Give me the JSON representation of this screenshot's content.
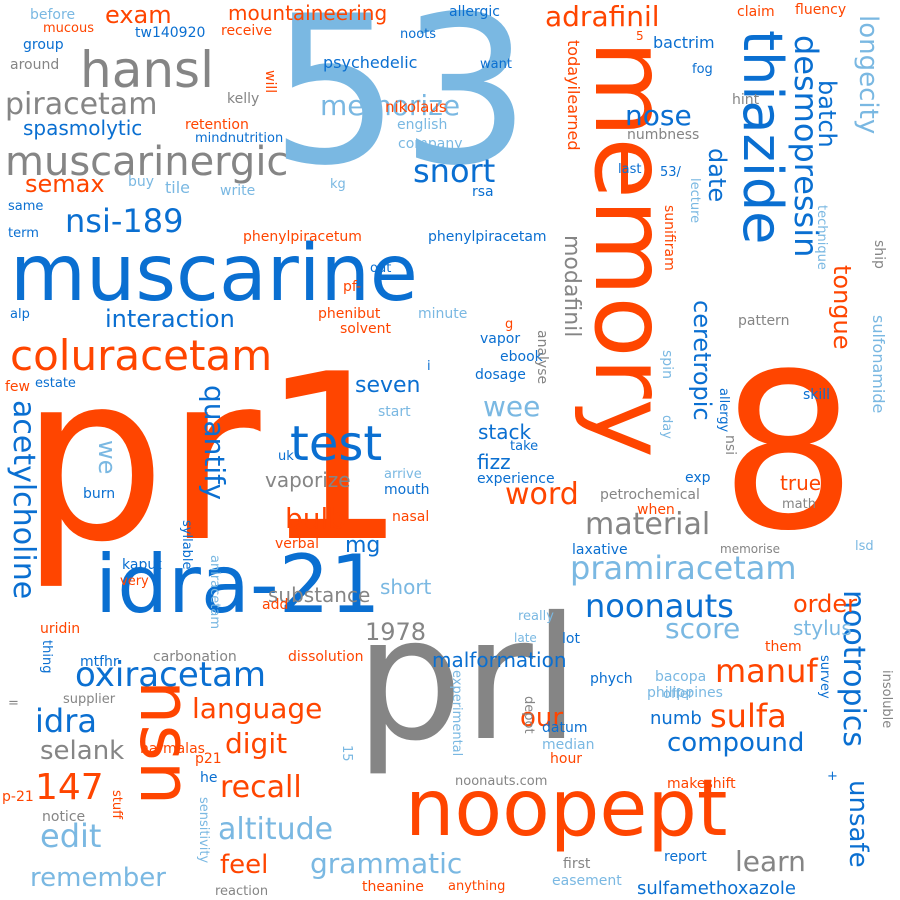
{
  "palette": {
    "orange": "#ff4500",
    "blue": "#0a6fd1",
    "gray": "#858585",
    "light": "#7ab8e2"
  },
  "words": [
    {
      "t": "pr1",
      "c": "orange",
      "vertical": false
    },
    {
      "t": "53",
      "c": "light",
      "vertical": false
    },
    {
      "t": "8",
      "c": "orange",
      "vertical": false
    },
    {
      "t": "prl",
      "c": "gray",
      "vertical": false
    },
    {
      "t": "memory",
      "c": "orange",
      "vertical": true
    },
    {
      "t": "muscarine",
      "c": "blue",
      "vertical": false
    },
    {
      "t": "idra-21",
      "c": "blue",
      "vertical": false
    },
    {
      "t": "noopept",
      "c": "orange",
      "vertical": false
    },
    {
      "t": "nsn",
      "c": "orange",
      "vertical": true
    },
    {
      "t": "thiazide",
      "c": "blue",
      "vertical": true
    },
    {
      "t": "coluracetam",
      "c": "orange",
      "vertical": false
    },
    {
      "t": "hansl",
      "c": "gray",
      "vertical": false
    },
    {
      "t": "muscarinergic",
      "c": "gray",
      "vertical": false
    },
    {
      "t": "test",
      "c": "blue",
      "vertical": false
    },
    {
      "t": "desmopressin",
      "c": "blue",
      "vertical": true
    },
    {
      "t": "piracetam",
      "c": "gray",
      "vertical": false
    },
    {
      "t": "acetylcholine",
      "c": "blue",
      "vertical": true
    },
    {
      "t": "oxiracetam",
      "c": "blue",
      "vertical": false
    },
    {
      "t": "nootropics",
      "c": "blue",
      "vertical": true
    },
    {
      "t": "pramiracetam",
      "c": "light",
      "vertical": false
    },
    {
      "t": "noonauts",
      "c": "blue",
      "vertical": false
    },
    {
      "t": "memorize",
      "c": "light",
      "vertical": false
    },
    {
      "t": "nsi-189",
      "c": "blue",
      "vertical": false
    },
    {
      "t": "compound",
      "c": "blue",
      "vertical": false
    },
    {
      "t": "altitude",
      "c": "light",
      "vertical": false
    },
    {
      "t": "grammatic",
      "c": "light",
      "vertical": false
    },
    {
      "t": "material",
      "c": "gray",
      "vertical": false
    },
    {
      "t": "manuf",
      "c": "orange",
      "vertical": false
    },
    {
      "t": "sulfa",
      "c": "orange",
      "vertical": false
    },
    {
      "t": "language",
      "c": "orange",
      "vertical": false
    },
    {
      "t": "147",
      "c": "orange",
      "vertical": false
    },
    {
      "t": "edit",
      "c": "light",
      "vertical": false
    },
    {
      "t": "idra",
      "c": "blue",
      "vertical": false
    },
    {
      "t": "recall",
      "c": "orange",
      "vertical": false
    },
    {
      "t": "digit",
      "c": "orange",
      "vertical": false
    },
    {
      "t": "score",
      "c": "light",
      "vertical": false
    },
    {
      "t": "word",
      "c": "orange",
      "vertical": false
    },
    {
      "t": "quantify",
      "c": "blue",
      "vertical": true
    },
    {
      "t": "interaction",
      "c": "blue",
      "vertical": false
    },
    {
      "t": "snort",
      "c": "blue",
      "vertical": false
    },
    {
      "t": "nose",
      "c": "blue",
      "vertical": false
    },
    {
      "t": "adrafinil",
      "c": "orange",
      "vertical": false
    },
    {
      "t": "longecity",
      "c": "light",
      "vertical": true
    },
    {
      "t": "tongue",
      "c": "orange",
      "vertical": true
    },
    {
      "t": "batch",
      "c": "blue",
      "vertical": true
    },
    {
      "t": "date",
      "c": "blue",
      "vertical": true
    },
    {
      "t": "exam",
      "c": "orange",
      "vertical": false
    },
    {
      "t": "semax",
      "c": "orange",
      "vertical": false
    },
    {
      "t": "modafinil",
      "c": "gray",
      "vertical": true
    },
    {
      "t": "ceretropic",
      "c": "blue",
      "vertical": true
    },
    {
      "t": "remember",
      "c": "light",
      "vertical": false
    },
    {
      "t": "feel",
      "c": "orange",
      "vertical": false
    },
    {
      "t": "learn",
      "c": "gray",
      "vertical": false
    },
    {
      "t": "unsafe",
      "c": "blue",
      "vertical": true
    },
    {
      "t": "our",
      "c": "orange",
      "vertical": false
    },
    {
      "t": "selank",
      "c": "gray",
      "vertical": false
    },
    {
      "t": "1978",
      "c": "gray",
      "vertical": false
    },
    {
      "t": "bulb",
      "c": "orange",
      "vertical": false
    },
    {
      "t": "wee",
      "c": "light",
      "vertical": false
    },
    {
      "t": "seven",
      "c": "blue",
      "vertical": false
    },
    {
      "t": "spasmolytic",
      "c": "blue",
      "vertical": false
    },
    {
      "t": "mountaineering",
      "c": "orange",
      "vertical": false
    },
    {
      "t": "order",
      "c": "orange",
      "vertical": false
    },
    {
      "t": "we",
      "c": "light",
      "vertical": true
    },
    {
      "t": "mg",
      "c": "blue",
      "vertical": false
    },
    {
      "t": "true",
      "c": "orange",
      "vertical": false
    },
    {
      "t": "stylus",
      "c": "light",
      "vertical": false
    },
    {
      "t": "numb",
      "c": "blue",
      "vertical": false
    },
    {
      "t": "substance",
      "c": "gray",
      "vertical": false
    },
    {
      "t": "short",
      "c": "light",
      "vertical": false
    },
    {
      "t": "vaporize",
      "c": "gray",
      "vertical": false
    },
    {
      "t": "malformation",
      "c": "blue",
      "vertical": false
    },
    {
      "t": "fizz",
      "c": "blue",
      "vertical": false
    },
    {
      "t": "stack",
      "c": "blue",
      "vertical": false
    },
    {
      "t": "sulfamethoxazole",
      "c": "blue",
      "vertical": false
    },
    {
      "t": "bactrim",
      "c": "blue",
      "vertical": false
    },
    {
      "t": "sulfonamide",
      "c": "light",
      "vertical": true
    },
    {
      "t": "todayilearned",
      "c": "orange",
      "vertical": true
    },
    {
      "t": "nikolaus",
      "c": "orange",
      "vertical": false
    },
    {
      "t": "psychedelic",
      "c": "blue",
      "vertical": false
    },
    {
      "t": "english",
      "c": "light",
      "vertical": false
    },
    {
      "t": "company",
      "c": "light",
      "vertical": false
    },
    {
      "t": "phenylpiracetum",
      "c": "orange",
      "vertical": false
    },
    {
      "t": "phenylpiracetam",
      "c": "blue",
      "vertical": false
    },
    {
      "t": "retention",
      "c": "orange",
      "vertical": false
    },
    {
      "t": "mindnutrition",
      "c": "blue",
      "vertical": false
    },
    {
      "t": "tw140920",
      "c": "blue",
      "vertical": false
    },
    {
      "t": "kelly",
      "c": "gray",
      "vertical": false
    },
    {
      "t": "tile",
      "c": "light",
      "vertical": false
    },
    {
      "t": "buy",
      "c": "light",
      "vertical": false
    },
    {
      "t": "write",
      "c": "light",
      "vertical": false
    },
    {
      "t": "kg",
      "c": "light",
      "vertical": false
    },
    {
      "t": "rsa",
      "c": "blue",
      "vertical": false
    },
    {
      "t": "before",
      "c": "light",
      "vertical": false
    },
    {
      "t": "mucous",
      "c": "orange",
      "vertical": false
    },
    {
      "t": "group",
      "c": "blue",
      "vertical": false
    },
    {
      "t": "around",
      "c": "gray",
      "vertical": false
    },
    {
      "t": "allergic",
      "c": "blue",
      "vertical": false
    },
    {
      "t": "receive",
      "c": "orange",
      "vertical": false
    },
    {
      "t": "noots",
      "c": "blue",
      "vertical": false
    },
    {
      "t": "want",
      "c": "blue",
      "vertical": false
    },
    {
      "t": "claim",
      "c": "orange",
      "vertical": false
    },
    {
      "t": "fluency",
      "c": "orange",
      "vertical": false
    },
    {
      "t": "fog",
      "c": "blue",
      "vertical": false
    },
    {
      "t": "hint",
      "c": "gray",
      "vertical": false
    },
    {
      "t": "numbness",
      "c": "gray",
      "vertical": false
    },
    {
      "t": "last",
      "c": "blue",
      "vertical": false
    },
    {
      "t": "53/",
      "c": "blue",
      "vertical": false
    },
    {
      "t": "lecture",
      "c": "light",
      "vertical": true
    },
    {
      "t": "sunifiram",
      "c": "orange",
      "vertical": true
    },
    {
      "t": "technique",
      "c": "light",
      "vertical": true
    },
    {
      "t": "ship",
      "c": "gray",
      "vertical": true
    },
    {
      "t": "pattern",
      "c": "gray",
      "vertical": false
    },
    {
      "t": "same",
      "c": "blue",
      "vertical": false
    },
    {
      "t": "term",
      "c": "blue",
      "vertical": false
    },
    {
      "t": "out",
      "c": "blue",
      "vertical": false
    },
    {
      "t": "pf-",
      "c": "orange",
      "vertical": false
    },
    {
      "t": "alp",
      "c": "blue",
      "vertical": false
    },
    {
      "t": "phenibut",
      "c": "orange",
      "vertical": false
    },
    {
      "t": "minute",
      "c": "light",
      "vertical": false
    },
    {
      "t": "solvent",
      "c": "orange",
      "vertical": false
    },
    {
      "t": "vapor",
      "c": "blue",
      "vertical": false
    },
    {
      "t": "ebook",
      "c": "blue",
      "vertical": false
    },
    {
      "t": "dosage",
      "c": "blue",
      "vertical": false
    },
    {
      "t": "analyse",
      "c": "gray",
      "vertical": true
    },
    {
      "t": "spin",
      "c": "light",
      "vertical": true
    },
    {
      "t": "day",
      "c": "light",
      "vertical": true
    },
    {
      "t": "allergy",
      "c": "blue",
      "vertical": true
    },
    {
      "t": "skill",
      "c": "blue",
      "vertical": false
    },
    {
      "t": "few",
      "c": "orange",
      "vertical": false
    },
    {
      "t": "estate",
      "c": "blue",
      "vertical": false
    },
    {
      "t": "start",
      "c": "light",
      "vertical": false
    },
    {
      "t": "uk",
      "c": "blue",
      "vertical": false
    },
    {
      "t": "take",
      "c": "blue",
      "vertical": false
    },
    {
      "t": "nsi",
      "c": "gray",
      "vertical": true
    },
    {
      "t": "experience",
      "c": "blue",
      "vertical": false
    },
    {
      "t": "exp",
      "c": "blue",
      "vertical": false
    },
    {
      "t": "mouth",
      "c": "blue",
      "vertical": false
    },
    {
      "t": "arrive",
      "c": "light",
      "vertical": false
    },
    {
      "t": "burn",
      "c": "blue",
      "vertical": false
    },
    {
      "t": "petrochemical",
      "c": "gray",
      "vertical": false
    },
    {
      "t": "when",
      "c": "orange",
      "vertical": false
    },
    {
      "t": "math",
      "c": "gray",
      "vertical": false
    },
    {
      "t": "nasal",
      "c": "orange",
      "vertical": false
    },
    {
      "t": "verbal",
      "c": "orange",
      "vertical": false
    },
    {
      "t": "syllable",
      "c": "blue",
      "vertical": true
    },
    {
      "t": "laxative",
      "c": "blue",
      "vertical": false
    },
    {
      "t": "memorise",
      "c": "gray",
      "vertical": false
    },
    {
      "t": "lsd",
      "c": "light",
      "vertical": false
    },
    {
      "t": "kaput",
      "c": "blue",
      "vertical": false
    },
    {
      "t": "very",
      "c": "orange",
      "vertical": false
    },
    {
      "t": "add",
      "c": "orange",
      "vertical": false
    },
    {
      "t": "aniracetam",
      "c": "light",
      "vertical": true
    },
    {
      "t": "uridin",
      "c": "orange",
      "vertical": false
    },
    {
      "t": "really",
      "c": "light",
      "vertical": false
    },
    {
      "t": "late",
      "c": "light",
      "vertical": false
    },
    {
      "t": "lot",
      "c": "blue",
      "vertical": false
    },
    {
      "t": "them",
      "c": "orange",
      "vertical": false
    },
    {
      "t": "thing",
      "c": "blue",
      "vertical": true
    },
    {
      "t": "mtfhr",
      "c": "blue",
      "vertical": false
    },
    {
      "t": "carbonation",
      "c": "gray",
      "vertical": false
    },
    {
      "t": "dissolution",
      "c": "orange",
      "vertical": false
    },
    {
      "t": "phych",
      "c": "blue",
      "vertical": false
    },
    {
      "t": "bacopa",
      "c": "light",
      "vertical": false
    },
    {
      "t": "offer",
      "c": "light",
      "vertical": false
    },
    {
      "t": "survey",
      "c": "blue",
      "vertical": true
    },
    {
      "t": "insoluble",
      "c": "gray",
      "vertical": true
    },
    {
      "t": "supplier",
      "c": "gray",
      "vertical": false
    },
    {
      "t": "=",
      "c": "gray",
      "vertical": false
    },
    {
      "t": "experimental",
      "c": "light",
      "vertical": true
    },
    {
      "t": "depot",
      "c": "gray",
      "vertical": true
    },
    {
      "t": "datum",
      "c": "blue",
      "vertical": false
    },
    {
      "t": "median",
      "c": "light",
      "vertical": false
    },
    {
      "t": "philippines",
      "c": "light",
      "vertical": false
    },
    {
      "t": "harmalas",
      "c": "orange",
      "vertical": false
    },
    {
      "t": "p21",
      "c": "orange",
      "vertical": false
    },
    {
      "t": "15",
      "c": "light",
      "vertical": true
    },
    {
      "t": "hour",
      "c": "orange",
      "vertical": false
    },
    {
      "t": "p-21",
      "c": "orange",
      "vertical": false
    },
    {
      "t": "he",
      "c": "blue",
      "vertical": false
    },
    {
      "t": "noonauts.com",
      "c": "gray",
      "vertical": false
    },
    {
      "t": "makeshift",
      "c": "orange",
      "vertical": false
    },
    {
      "t": "notice",
      "c": "gray",
      "vertical": false
    },
    {
      "t": "stuff",
      "c": "orange",
      "vertical": true
    },
    {
      "t": "sensitivity",
      "c": "light",
      "vertical": true
    },
    {
      "t": "report",
      "c": "blue",
      "vertical": false
    },
    {
      "t": "first",
      "c": "gray",
      "vertical": false
    },
    {
      "t": "easement",
      "c": "light",
      "vertical": false
    },
    {
      "t": "reaction",
      "c": "gray",
      "vertical": false
    },
    {
      "t": "theanine",
      "c": "orange",
      "vertical": false
    },
    {
      "t": "anything",
      "c": "orange",
      "vertical": false
    },
    {
      "t": "will",
      "c": "orange",
      "vertical": true
    },
    {
      "t": "5",
      "c": "orange",
      "vertical": false
    },
    {
      "t": "i",
      "c": "blue",
      "vertical": false
    },
    {
      "t": "g",
      "c": "orange",
      "vertical": false
    },
    {
      "t": "+",
      "c": "blue",
      "vertical": false
    }
  ]
}
